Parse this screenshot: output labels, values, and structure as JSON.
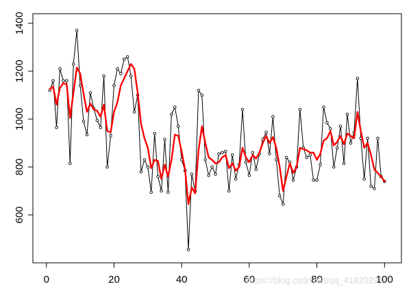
{
  "chart_data": {
    "type": "line",
    "title": "",
    "xlabel": "",
    "ylabel": "",
    "xlim": [
      -4,
      105
    ],
    "ylim": [
      400,
      1440
    ],
    "x_ticks": [
      0,
      20,
      40,
      60,
      80,
      100
    ],
    "y_ticks": [
      600,
      800,
      1000,
      1200,
      1400
    ],
    "x_tick_labels": [
      "0",
      "20",
      "40",
      "60",
      "80",
      "100"
    ],
    "y_tick_labels": [
      "600",
      "800",
      "1000",
      "1200",
      "1400"
    ],
    "grid": false,
    "legend": null,
    "series": [
      {
        "style": "points-and-line",
        "color": "#000000",
        "x": [
          1,
          2,
          3,
          4,
          5,
          6,
          7,
          8,
          9,
          10,
          11,
          12,
          13,
          14,
          15,
          16,
          17,
          18,
          19,
          20,
          21,
          22,
          23,
          24,
          25,
          26,
          27,
          28,
          29,
          30,
          31,
          32,
          33,
          34,
          35,
          36,
          37,
          38,
          39,
          40,
          41,
          42,
          43,
          44,
          45,
          46,
          47,
          48,
          49,
          50,
          51,
          52,
          53,
          54,
          55,
          56,
          57,
          58,
          59,
          60,
          61,
          62,
          63,
          64,
          65,
          66,
          67,
          68,
          69,
          70,
          71,
          72,
          73,
          74,
          75,
          76,
          77,
          78,
          79,
          80,
          81,
          82,
          83,
          84,
          85,
          86,
          87,
          88,
          89,
          90,
          91,
          92,
          93,
          94,
          95,
          96,
          97,
          98,
          99,
          100
        ],
        "y": [
          1120,
          1160,
          965,
          1210,
          1160,
          1160,
          815,
          1230,
          1370,
          1140,
          990,
          935,
          1110,
          1045,
          995,
          965,
          1180,
          800,
          930,
          1140,
          1210,
          1190,
          1250,
          1260,
          1180,
          1030,
          1100,
          780,
          830,
          800,
          695,
          940,
          760,
          700,
          915,
          695,
          1020,
          1050,
          970,
          830,
          785,
          455,
          770,
          700,
          1120,
          1100,
          830,
          765,
          800,
          770,
          855,
          860,
          865,
          700,
          850,
          750,
          810,
          1040,
          820,
          765,
          860,
          790,
          855,
          915,
          945,
          855,
          1010,
          830,
          680,
          645,
          840,
          820,
          745,
          800,
          1040,
          880,
          840,
          850,
          745,
          745,
          810,
          1050,
          985,
          960,
          800,
          880,
          970,
          815,
          1020,
          900,
          945,
          1170,
          920,
          750,
          920,
          720,
          710,
          920,
          760,
          740
        ]
      },
      {
        "style": "smoothed-line",
        "color": "#ff0000",
        "x": [
          1,
          2,
          3,
          4,
          5,
          6,
          7,
          8,
          9,
          10,
          11,
          12,
          13,
          14,
          15,
          16,
          17,
          18,
          19,
          20,
          21,
          22,
          23,
          24,
          25,
          26,
          27,
          28,
          29,
          30,
          31,
          32,
          33,
          34,
          35,
          36,
          37,
          38,
          39,
          40,
          41,
          42,
          43,
          44,
          45,
          46,
          47,
          48,
          49,
          50,
          51,
          52,
          53,
          54,
          55,
          56,
          57,
          58,
          59,
          60,
          61,
          62,
          63,
          64,
          65,
          66,
          67,
          68,
          69,
          70,
          71,
          72,
          73,
          74,
          75,
          76,
          77,
          78,
          79,
          80,
          81,
          82,
          83,
          84,
          85,
          86,
          87,
          88,
          89,
          90,
          91,
          92,
          93,
          94,
          95,
          96,
          97,
          98,
          99,
          100
        ],
        "y": [
          1125,
          1135,
          1060,
          1130,
          1150,
          1145,
          1005,
          1110,
          1215,
          1190,
          1105,
          1030,
          1065,
          1040,
          1035,
          1010,
          1060,
          950,
          945,
          1030,
          1070,
          1140,
          1170,
          1200,
          1230,
          1210,
          1110,
          980,
          920,
          880,
          795,
          830,
          825,
          750,
          810,
          760,
          830,
          935,
          930,
          865,
          790,
          645,
          715,
          690,
          870,
          970,
          900,
          840,
          830,
          815,
          820,
          840,
          850,
          795,
          815,
          785,
          800,
          880,
          840,
          820,
          850,
          835,
          860,
          900,
          930,
          900,
          925,
          880,
          800,
          700,
          760,
          815,
          775,
          800,
          880,
          875,
          870,
          860,
          860,
          830,
          855,
          910,
          920,
          950,
          890,
          905,
          930,
          895,
          940,
          930,
          920,
          1030,
          950,
          880,
          900,
          850,
          790,
          775,
          760,
          740
        ]
      }
    ]
  },
  "watermark": "https://blog.csdn.net/qq_41820291"
}
